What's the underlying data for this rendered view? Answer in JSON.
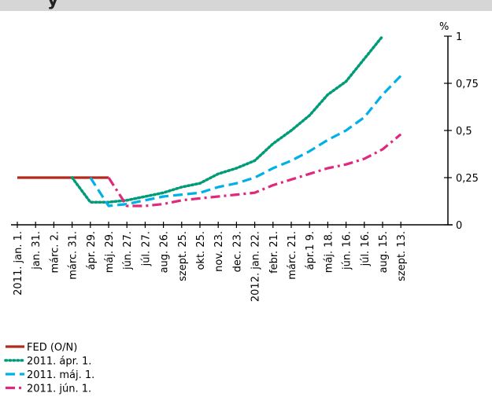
{
  "header_fragment": "y",
  "colors": {
    "fed": "#b22a1c",
    "apr": "#009b77",
    "maj": "#00b0e6",
    "jun": "#e0287c",
    "axis": "#000000",
    "band": "#d6d6d6"
  },
  "chart_data": {
    "type": "line",
    "title": "",
    "xlabel": "",
    "ylabel": "%",
    "ylim": [
      0,
      1
    ],
    "yticks": [
      0,
      0.25,
      0.5,
      0.75,
      1
    ],
    "ytick_labels": [
      "0",
      "0,25",
      "0,5",
      "0,75",
      "1"
    ],
    "y_axis_position": "right",
    "grid": false,
    "legend_position": "bottom-left",
    "categories": [
      "2011. jan. 1.",
      "jan. 31.",
      "márc. 2.",
      "márc. 31.",
      "ápr. 29.",
      "máj. 29.",
      "jún. 27.",
      "júl. 27.",
      "aug. 26.",
      "szept. 25.",
      "okt. 25.",
      "nov. 23.",
      "dec. 23.",
      "2012. jan. 22.",
      "febr. 21.",
      "márc. 21.",
      "ápr.1 9.",
      "máj. 18.",
      "jún. 16.",
      "júl. 16.",
      "aug. 15.",
      "szept. 13."
    ],
    "series": [
      {
        "name": "FED (O/N)",
        "style": "solid",
        "color": "#b22a1c",
        "values": [
          0.25,
          0.25,
          0.25,
          0.25,
          0.25,
          0.25,
          null,
          null,
          null,
          null,
          null,
          null,
          null,
          null,
          null,
          null,
          null,
          null,
          null,
          null,
          null,
          null
        ]
      },
      {
        "name": "2011. ápr. 1.",
        "style": "dotted",
        "color": "#009b77",
        "values": [
          null,
          null,
          null,
          0.25,
          0.12,
          0.12,
          0.13,
          0.15,
          0.17,
          0.2,
          0.22,
          0.27,
          0.3,
          0.34,
          0.43,
          0.5,
          0.58,
          0.69,
          0.76,
          0.88,
          1.0,
          null
        ]
      },
      {
        "name": "2011. máj. 1.",
        "style": "dashed",
        "color": "#00b0e6",
        "values": [
          null,
          null,
          null,
          null,
          0.25,
          0.1,
          0.11,
          0.13,
          0.15,
          0.16,
          0.17,
          0.2,
          0.22,
          0.25,
          0.3,
          0.34,
          0.39,
          0.45,
          0.5,
          0.57,
          0.69,
          0.79
        ]
      },
      {
        "name": "2011. jún. 1.",
        "style": "dashdot",
        "color": "#e0287c",
        "values": [
          null,
          null,
          null,
          null,
          null,
          0.25,
          0.1,
          0.1,
          0.11,
          0.13,
          0.14,
          0.15,
          0.16,
          0.17,
          0.21,
          0.24,
          0.27,
          0.3,
          0.32,
          0.35,
          0.4,
          0.48
        ]
      }
    ]
  }
}
